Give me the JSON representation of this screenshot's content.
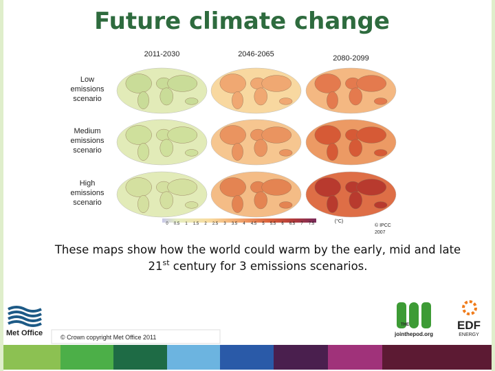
{
  "header": {
    "title": "Future climate change"
  },
  "maps": {
    "columns": [
      "2011-2030",
      "2046-2065",
      "2080-2099"
    ],
    "rows": [
      {
        "label": [
          "Low",
          "emissions",
          "scenario"
        ]
      },
      {
        "label": [
          "Medium",
          "emissions",
          "scenario"
        ]
      },
      {
        "label": [
          "High",
          "emissions",
          "scenario"
        ]
      }
    ],
    "scale": {
      "ticks": [
        0,
        0.5,
        1,
        1.5,
        2,
        2.5,
        3,
        3.5,
        4,
        4.5,
        5,
        5.5,
        6,
        6.5,
        7,
        7.5
      ],
      "unit": "(°C)"
    },
    "credit": [
      "© IPCC",
      "2007"
    ]
  },
  "caption": {
    "line1": "These maps show how the world could warm by the early, mid and late",
    "line2_start": "21",
    "line2_sup": "st",
    "line2_end": " century for 3 emissions scenarios."
  },
  "footer": {
    "copyright": "© Crown copyright Met Office 2011",
    "metoffice": "Met Office",
    "pod_the": "THE",
    "pod_url": "jointhepod.org",
    "edf": "EDF",
    "edf_energy": "ENERGY"
  }
}
